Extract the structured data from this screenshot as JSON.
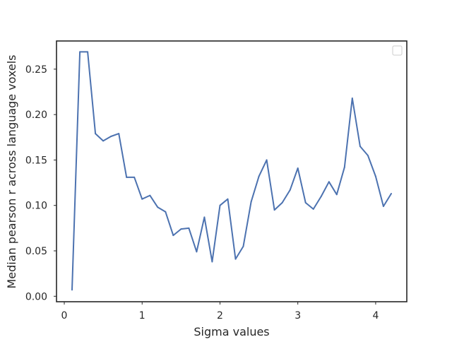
{
  "chart_data": {
    "type": "line",
    "title": "",
    "xlabel": "Sigma values",
    "ylabel": "Median pearson r across language voxels",
    "xlim": [
      -0.1,
      4.4
    ],
    "ylim": [
      -0.006,
      0.281
    ],
    "xticks": [
      0,
      1,
      2,
      3,
      4
    ],
    "xtick_labels": [
      "0",
      "1",
      "2",
      "3",
      "4"
    ],
    "yticks": [
      0.0,
      0.05,
      0.1,
      0.15,
      0.2,
      0.25
    ],
    "ytick_labels": [
      "0.00",
      "0.05",
      "0.10",
      "0.15",
      "0.20",
      "0.25"
    ],
    "grid": false,
    "legend": "top-right, empty",
    "series": [
      {
        "color": "#4c72b0",
        "x": [
          0.1,
          0.2,
          0.3,
          0.4,
          0.5,
          0.6,
          0.7,
          0.8,
          0.9,
          1.0,
          1.1,
          1.2,
          1.3,
          1.4,
          1.5,
          1.6,
          1.7,
          1.8,
          1.9,
          2.0,
          2.1,
          2.2,
          2.3,
          2.4,
          2.5,
          2.6,
          2.7,
          2.8,
          2.9,
          3.0,
          3.1,
          3.2,
          3.3,
          3.4,
          3.5,
          3.6,
          3.7,
          3.8,
          3.9,
          4.0,
          4.1,
          4.2
        ],
        "y": [
          0.007,
          0.269,
          0.269,
          0.179,
          0.171,
          0.176,
          0.179,
          0.131,
          0.131,
          0.107,
          0.111,
          0.098,
          0.093,
          0.067,
          0.074,
          0.075,
          0.049,
          0.087,
          0.038,
          0.1,
          0.107,
          0.041,
          0.055,
          0.104,
          0.132,
          0.15,
          0.095,
          0.103,
          0.117,
          0.141,
          0.103,
          0.096,
          0.11,
          0.126,
          0.112,
          0.142,
          0.218,
          0.165,
          0.155,
          0.132,
          0.099,
          0.113
        ]
      }
    ]
  }
}
